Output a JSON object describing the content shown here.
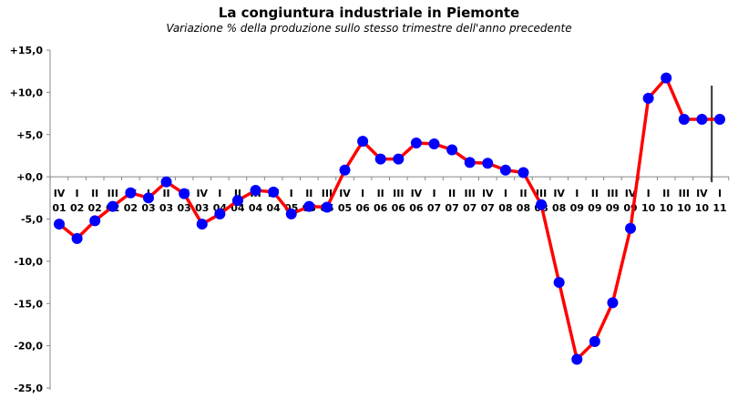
{
  "chart_data": {
    "type": "line",
    "title": "La congiuntura  industriale in Piemonte",
    "subtitle": "Variazione % della produzione sullo stesso trimestre dell'anno precedente",
    "xlabel": "",
    "ylabel": "",
    "ylim": [
      -25,
      15
    ],
    "yticks": [
      "+15,0",
      "+10,0",
      "+5,0",
      "+0,0",
      "-5,0",
      "-10,0",
      "-15,0",
      "-20,0",
      "-25,0"
    ],
    "ytick_values": [
      15,
      10,
      5,
      0,
      -5,
      -10,
      -15,
      -20,
      -25
    ],
    "grid": false,
    "categories": [
      [
        "IV",
        "01"
      ],
      [
        "I",
        "02"
      ],
      [
        "II",
        "02"
      ],
      [
        "III",
        "02"
      ],
      [
        "IV",
        "02"
      ],
      [
        "I",
        "03"
      ],
      [
        "II",
        "03"
      ],
      [
        "III",
        "03"
      ],
      [
        "IV",
        "03"
      ],
      [
        "I",
        "04"
      ],
      [
        "II",
        "04"
      ],
      [
        "III",
        "04"
      ],
      [
        "IV",
        "04"
      ],
      [
        "I",
        "05"
      ],
      [
        "II",
        "05"
      ],
      [
        "III",
        "05"
      ],
      [
        "IV",
        "05"
      ],
      [
        "I",
        "06"
      ],
      [
        "II",
        "06"
      ],
      [
        "III",
        "06"
      ],
      [
        "IV",
        "06"
      ],
      [
        "I",
        "07"
      ],
      [
        "II",
        "07"
      ],
      [
        "III",
        "07"
      ],
      [
        "IV",
        "07"
      ],
      [
        "I",
        "08"
      ],
      [
        "II",
        "08"
      ],
      [
        "III",
        "08"
      ],
      [
        "IV",
        "08"
      ],
      [
        "I",
        "09"
      ],
      [
        "II",
        "09"
      ],
      [
        "III",
        "09"
      ],
      [
        "IV",
        "09"
      ],
      [
        "I",
        "10"
      ],
      [
        "II",
        "10"
      ],
      [
        "III",
        "10"
      ],
      [
        "IV",
        "10"
      ],
      [
        "I",
        "11"
      ]
    ],
    "series": [
      {
        "values": [
          -5.6,
          -7.3,
          -5.2,
          -3.5,
          -1.9,
          -2.5,
          -0.6,
          -2.0,
          -5.6,
          -4.4,
          -2.8,
          -1.6,
          -1.8,
          -4.4,
          -3.5,
          -3.6,
          0.8,
          4.2,
          2.1,
          2.1,
          4.0,
          3.9,
          3.2,
          1.7,
          1.6,
          0.8,
          0.5,
          -3.3,
          -12.5,
          -21.6,
          -19.5,
          -14.9,
          -6.1,
          9.3,
          11.7,
          6.8,
          6.8,
          6.8
        ],
        "line_color": "#ff0000",
        "marker_color": "#0000ff"
      }
    ],
    "marker_line": {
      "between": [
        "IV 10",
        "I 11"
      ],
      "color": "#333333"
    }
  }
}
